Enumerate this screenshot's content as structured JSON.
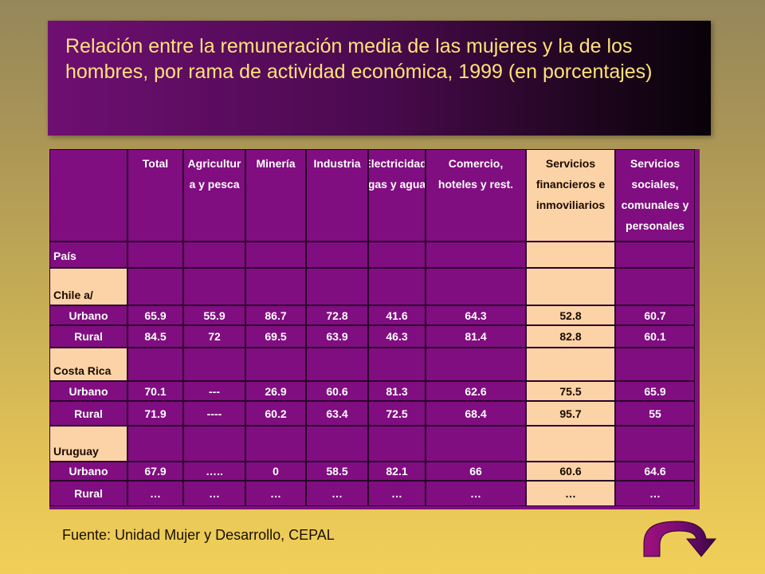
{
  "title": "Relación entre la remuneración media de las mujeres y la de los hombres, por rama de actividad económica, 1999 (en porcentajes)",
  "table": {
    "headers": [
      "",
      "Total",
      "Agricultur\na y pesca",
      "Minería",
      "Industria",
      "Electricidad,\ngas y agua",
      "Comercio,\nhoteles y rest.",
      "Servicios\nfinancieros e\ninmoviliarios",
      "Servicios\nsociales,\ncomunales y\npersonales"
    ],
    "rows": [
      [
        "País",
        "",
        "",
        "",
        "",
        "",
        "",
        "",
        ""
      ],
      [
        "Chile a/",
        "",
        "",
        "",
        "",
        "",
        "",
        "",
        ""
      ],
      [
        "Urbano",
        "65.9",
        "55.9",
        "86.7",
        "72.8",
        "41.6",
        "64.3",
        "52.8",
        "60.7"
      ],
      [
        "Rural",
        "84.5",
        "72",
        "69.5",
        "63.9",
        "46.3",
        "81.4",
        "82.8",
        "60.1"
      ],
      [
        "Costa Rica",
        "",
        "",
        "",
        "",
        "",
        "",
        "",
        ""
      ],
      [
        "Urbano",
        "70.1",
        "---",
        "26.9",
        "60.6",
        "81.3",
        "62.6",
        "75.5",
        "65.9"
      ],
      [
        "Rural",
        "71.9",
        "----",
        "60.2",
        "63.4",
        "72.5",
        "68.4",
        "95.7",
        "55"
      ],
      [
        "Uruguay",
        "",
        "",
        "",
        "",
        "",
        "",
        "",
        ""
      ],
      [
        "Urbano",
        "67.9",
        "…..",
        "0",
        "58.5",
        "82.1",
        "66",
        "60.6",
        "64.6"
      ],
      [
        "Rural",
        "…",
        "…",
        "…",
        "…",
        "…",
        "…",
        "…",
        "…"
      ]
    ]
  },
  "source": "Fuente: Unidad Mujer y Desarrollo, CEPAL",
  "colors": {
    "title_bg": "#6e0f72",
    "title_text": "#ffe27a",
    "table_bg": "#800e80",
    "highlight_col": "#fcd3a6"
  },
  "icons": {
    "nav": "curved-arrow-icon"
  }
}
